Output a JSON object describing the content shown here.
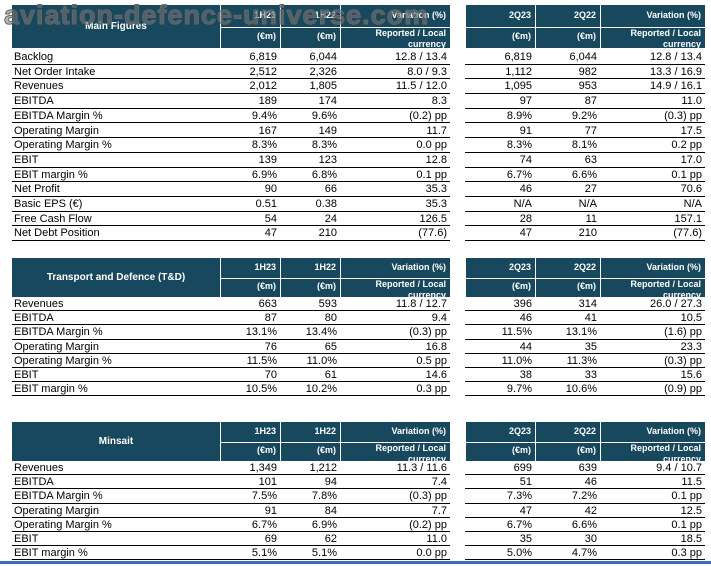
{
  "watermark": "aviation-defence-universe.com",
  "sections": [
    {
      "title": "Main Figures",
      "headers": [
        {
          "label": "1H23",
          "unit": "(€m)"
        },
        {
          "label": "1H22",
          "unit": "(€m)"
        },
        {
          "label": "Variation (%)",
          "unit": "Reported / Local currency"
        },
        {
          "label": "2Q23",
          "unit": "(€m)"
        },
        {
          "label": "2Q22",
          "unit": "(€m)"
        },
        {
          "label": "Variation (%)",
          "unit": "Reported / Local currency"
        }
      ],
      "rows": [
        [
          "Backlog",
          "6,819",
          "6,044",
          "12.8 / 13.4",
          "6,819",
          "6,044",
          "12.8 / 13.4"
        ],
        [
          "Net Order Intake",
          "2,512",
          "2,326",
          "8.0 / 9.3",
          "1,112",
          "982",
          "13.3 / 16.9"
        ],
        [
          "Revenues",
          "2,012",
          "1,805",
          "11.5 / 12.0",
          "1,095",
          "953",
          "14.9 / 16.1"
        ],
        [
          "EBITDA",
          "189",
          "174",
          "8.3",
          "97",
          "87",
          "11.0"
        ],
        [
          "EBITDA Margin %",
          "9.4%",
          "9.6%",
          "(0.2) pp",
          "8.9%",
          "9.2%",
          "(0.3) pp"
        ],
        [
          "Operating Margin",
          "167",
          "149",
          "11.7",
          "91",
          "77",
          "17.5"
        ],
        [
          "Operating Margin %",
          "8.3%",
          "8.3%",
          "0.0 pp",
          "8.3%",
          "8.1%",
          "0.2 pp"
        ],
        [
          "EBIT",
          "139",
          "123",
          "12.8",
          "74",
          "63",
          "17.0"
        ],
        [
          "EBIT margin %",
          "6.9%",
          "6.8%",
          "0.1 pp",
          "6.7%",
          "6.6%",
          "0.1 pp"
        ],
        [
          "Net Profit",
          "90",
          "66",
          "35.3",
          "46",
          "27",
          "70.6"
        ],
        [
          "Basic EPS (€)",
          "0.51",
          "0.38",
          "35.3",
          "N/A",
          "N/A",
          "N/A"
        ],
        [
          "Free Cash Flow",
          "54",
          "24",
          "126.5",
          "28",
          "11",
          "157.1"
        ],
        [
          "Net Debt Position",
          "47",
          "210",
          "(77.6)",
          "47",
          "210",
          "(77.6)"
        ]
      ]
    },
    {
      "title": "Transport and Defence (T&D)",
      "headers": [
        {
          "label": "1H23",
          "unit": "(€m)"
        },
        {
          "label": "1H22",
          "unit": "(€m)"
        },
        {
          "label": "Variation (%)",
          "unit": "Reported / Local currency"
        },
        {
          "label": "2Q23",
          "unit": "(€m)"
        },
        {
          "label": "2Q22",
          "unit": "(€m)"
        },
        {
          "label": "Variation (%)",
          "unit": "Reported / Local currency"
        }
      ],
      "rows": [
        [
          "Revenues",
          "663",
          "593",
          "11.8 / 12.7",
          "396",
          "314",
          "26.0 / 27.3"
        ],
        [
          "EBITDA",
          "87",
          "80",
          "9.4",
          "46",
          "41",
          "10.5"
        ],
        [
          "EBITDA Margin %",
          "13.1%",
          "13.4%",
          "(0.3) pp",
          "11.5%",
          "13.1%",
          "(1.6) pp"
        ],
        [
          "Operating Margin",
          "76",
          "65",
          "16.8",
          "44",
          "35",
          "23.3"
        ],
        [
          "Operating Margin %",
          "11.5%",
          "11.0%",
          "0.5 pp",
          "11.0%",
          "11.3%",
          "(0.3) pp"
        ],
        [
          "EBIT",
          "70",
          "61",
          "14.6",
          "38",
          "33",
          "15.6"
        ],
        [
          "EBIT margin %",
          "10.5%",
          "10.2%",
          "0.3 pp",
          "9.7%",
          "10.6%",
          "(0.9) pp"
        ]
      ]
    },
    {
      "title": "Minsait",
      "headers": [
        {
          "label": "1H23",
          "unit": "(€m)"
        },
        {
          "label": "1H22",
          "unit": "(€m)"
        },
        {
          "label": "Variation (%)",
          "unit": "Reported / Local currency"
        },
        {
          "label": "2Q23",
          "unit": "(€m)"
        },
        {
          "label": "2Q22",
          "unit": "(€m)"
        },
        {
          "label": "Variation (%)",
          "unit": "Reported / Local currency"
        }
      ],
      "rows": [
        [
          "Revenues",
          "1,349",
          "1,212",
          "11.3 / 11.6",
          "699",
          "639",
          "9.4 / 10.7"
        ],
        [
          "EBITDA",
          "101",
          "94",
          "7.4",
          "51",
          "46",
          "11.5"
        ],
        [
          "EBITDA Margin %",
          "7.5%",
          "7.8%",
          "(0.3) pp",
          "7.3%",
          "7.2%",
          "0.1 pp"
        ],
        [
          "Operating Margin",
          "91",
          "84",
          "7.7",
          "47",
          "42",
          "12.5"
        ],
        [
          "Operating Margin %",
          "6.7%",
          "6.9%",
          "(0.2) pp",
          "6.7%",
          "6.6%",
          "0.1 pp"
        ],
        [
          "EBIT",
          "69",
          "62",
          "11.0",
          "35",
          "30",
          "18.5"
        ],
        [
          "EBIT margin %",
          "5.1%",
          "5.1%",
          "0.0 pp",
          "5.0%",
          "4.7%",
          "0.3 pp"
        ]
      ]
    }
  ]
}
